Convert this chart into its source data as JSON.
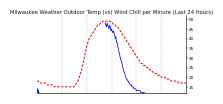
{
  "title": "Milwaukee Weather Outdoor Temp (vs) Wind Chill per Minute (Last 24 Hours)",
  "background_color": "#ffffff",
  "plot_bg_color": "#ffffff",
  "grid_color": "#888888",
  "ylim": [
    12,
    52
  ],
  "yticks": [
    15,
    20,
    25,
    30,
    35,
    40,
    45,
    50
  ],
  "red_line_color": "#dd0000",
  "blue_line_color": "#0000dd",
  "red_x": [
    0,
    6,
    12,
    18,
    24,
    30,
    36,
    42,
    48,
    54,
    60,
    66,
    72,
    78,
    84,
    90,
    96,
    102,
    108,
    114,
    120,
    126,
    132,
    138,
    144,
    150,
    156,
    162,
    168,
    174,
    180,
    186,
    192,
    198,
    204,
    210,
    216,
    222,
    228,
    234,
    240,
    246,
    252,
    258,
    264,
    270,
    276,
    282,
    288,
    294,
    300,
    306,
    312,
    318,
    324,
    330,
    336,
    342,
    348,
    354,
    360,
    366,
    372,
    378,
    384,
    390,
    396,
    402,
    408,
    414,
    420,
    426,
    432,
    438,
    444,
    450,
    456,
    462,
    468,
    474,
    480,
    486,
    492,
    498,
    504,
    510,
    516,
    522,
    528,
    534,
    540,
    546,
    552,
    558,
    564,
    570,
    576,
    582,
    588,
    594,
    600,
    606,
    612,
    618,
    624,
    630,
    636,
    642,
    648,
    654,
    660,
    666,
    672,
    678,
    684,
    690,
    696,
    702,
    708,
    714,
    720
  ],
  "red_y": [
    18,
    18,
    17,
    17,
    17,
    17,
    17,
    17,
    16,
    16,
    16,
    16,
    16,
    16,
    15,
    15,
    15,
    15,
    15,
    15,
    15,
    15,
    15,
    15,
    15,
    15,
    15,
    15,
    15,
    15,
    15,
    16,
    17,
    18,
    20,
    22,
    24,
    27,
    30,
    33,
    36,
    38,
    40,
    41,
    42,
    43,
    44,
    45,
    46,
    47,
    47,
    48,
    48,
    49,
    49,
    49,
    49,
    49,
    49,
    49,
    48,
    48,
    47,
    47,
    46,
    46,
    45,
    44,
    43,
    42,
    41,
    40,
    39,
    38,
    37,
    36,
    35,
    34,
    33,
    32,
    31,
    30,
    29,
    28,
    27,
    27,
    26,
    26,
    25,
    25,
    24,
    24,
    23,
    23,
    22,
    22,
    22,
    21,
    21,
    21,
    20,
    20,
    20,
    20,
    19,
    19,
    19,
    19,
    18,
    18,
    18,
    18,
    18,
    18,
    17,
    17,
    17,
    17,
    17,
    17,
    17
  ],
  "blue_x_left": [
    0,
    1,
    2,
    3,
    4,
    5,
    6,
    7,
    8,
    9
  ],
  "blue_y_left": [
    13,
    13,
    14,
    13,
    12,
    12,
    13,
    13,
    13,
    12
  ],
  "blue_x_right": [
    330,
    333,
    336,
    339,
    342,
    345,
    348,
    351,
    354,
    357,
    360,
    363,
    366,
    369,
    372,
    375,
    378,
    381,
    384,
    387,
    390,
    393,
    396,
    399,
    402,
    405,
    408,
    411,
    414,
    417,
    420,
    423,
    426,
    429,
    432,
    435,
    438,
    441,
    444,
    447,
    450,
    453,
    456,
    459,
    462,
    465,
    468,
    471,
    474,
    477,
    480,
    483,
    486,
    489,
    492,
    495,
    498,
    501,
    504,
    507,
    510,
    513,
    516,
    519,
    522,
    525,
    528,
    531,
    534,
    537,
    540,
    543,
    546,
    549,
    552,
    555,
    558,
    561,
    564,
    567,
    570,
    573,
    576,
    579,
    582,
    585,
    588,
    591,
    594,
    597,
    600,
    603,
    606,
    609,
    612,
    615,
    618,
    621,
    624,
    627,
    630,
    633,
    636,
    639,
    642,
    645,
    648,
    651,
    654,
    657,
    660,
    663,
    666,
    669,
    672,
    675,
    678,
    681,
    684,
    687,
    690,
    693,
    696,
    699,
    702,
    705,
    708,
    711,
    714,
    717,
    720
  ],
  "blue_y_right": [
    48,
    47,
    46,
    48,
    47,
    46,
    45,
    47,
    46,
    44,
    45,
    44,
    43,
    44,
    43,
    42,
    40,
    41,
    38,
    38,
    36,
    35,
    33,
    32,
    30,
    29,
    28,
    27,
    25,
    24,
    23,
    22,
    21,
    20,
    19,
    19,
    18,
    18,
    17,
    17,
    16,
    16,
    16,
    15,
    15,
    15,
    14,
    14,
    14,
    14,
    13,
    13,
    13,
    13,
    13,
    13,
    13,
    12,
    12,
    12,
    12,
    12,
    12,
    12,
    11,
    11,
    11,
    11,
    11,
    11,
    11,
    11,
    11,
    11,
    11,
    11,
    11,
    11,
    11,
    11,
    11,
    11,
    11,
    11,
    11,
    11,
    11,
    11,
    11,
    11,
    11,
    11,
    11,
    11,
    11,
    11,
    11,
    11,
    11,
    11,
    11,
    11,
    11,
    11,
    11,
    11,
    11,
    11,
    11,
    11,
    11,
    11,
    11,
    11,
    11,
    11,
    11,
    11,
    11,
    11,
    11,
    11,
    11,
    11,
    11,
    11,
    11,
    11,
    11,
    11,
    11
  ],
  "n_points": 721,
  "vgrid_x": [
    120,
    240,
    360,
    480,
    600
  ],
  "title_fontsize": 3.8,
  "tick_fontsize": 3.0,
  "linewidth_red": 0.7,
  "linewidth_blue": 0.55
}
